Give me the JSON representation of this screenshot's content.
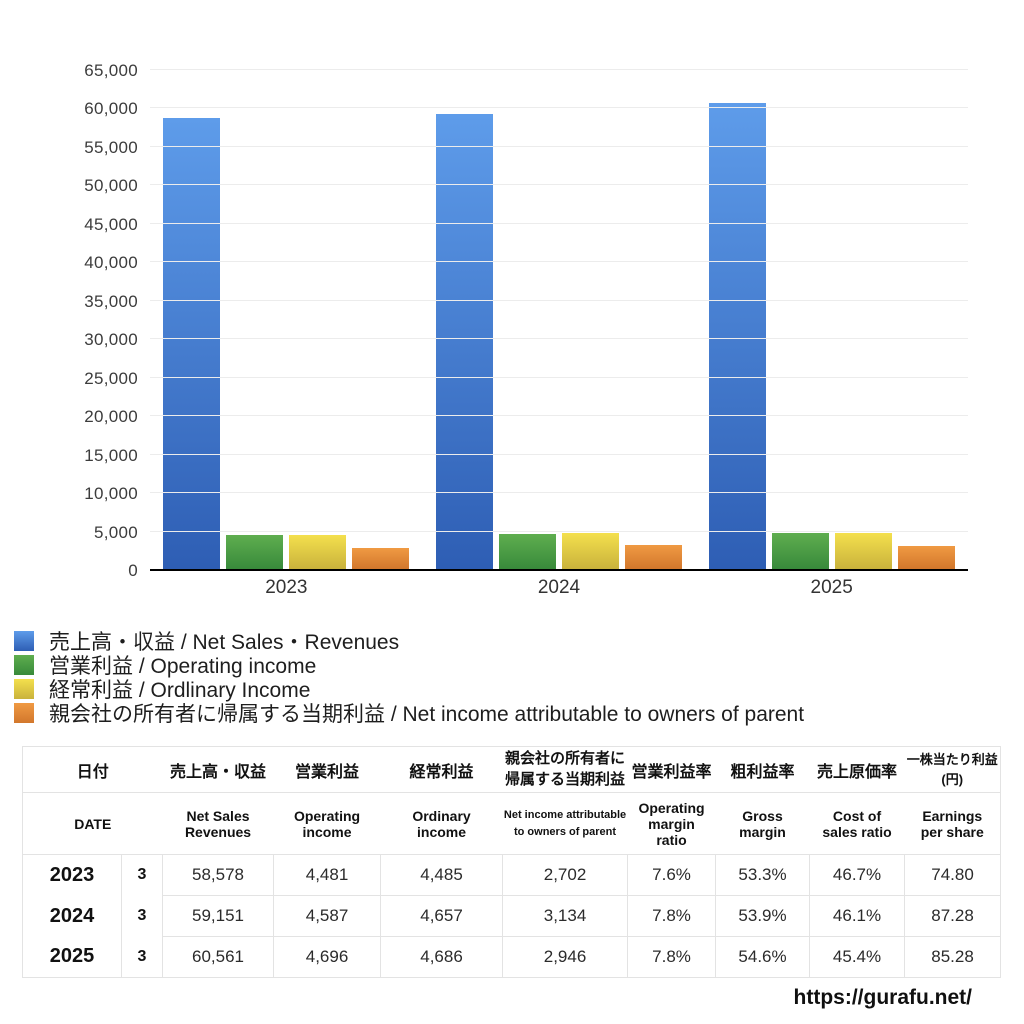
{
  "chart_data": {
    "type": "bar",
    "title": "",
    "categories": [
      "2023",
      "2024",
      "2025"
    ],
    "series": [
      {
        "key": "net-sales-revenues",
        "name": "売上高・収益 / Net Sales・Revenues",
        "values": [
          58578,
          59151,
          60561
        ],
        "color_top": "#5e9cea",
        "color_bottom": "#2e5eb4"
      },
      {
        "key": "operating-income",
        "name": "営業利益 / Operating income",
        "values": [
          4481,
          4587,
          4696
        ],
        "color_top": "#5fae4f",
        "color_bottom": "#388a3b"
      },
      {
        "key": "ordinary-income",
        "name": "経常利益 / Ordlinary Income",
        "values": [
          4485,
          4657,
          4686
        ],
        "color_top": "#f4e04d",
        "color_bottom": "#c9b23c"
      },
      {
        "key": "net-income-parent",
        "name": "親会社の所有者に帰属する当期利益 / Net income attributable to owners of parent",
        "values": [
          2702,
          3134,
          2946
        ],
        "color_top": "#f09a43",
        "color_bottom": "#d2772c"
      }
    ],
    "xlabel": "",
    "ylabel": "",
    "ylim": [
      0,
      65000
    ],
    "ytick_step": 5000,
    "grid": true,
    "gridline_color": "#ececec",
    "axis_color": "#000000",
    "legend_position": "bottom-left"
  },
  "table": {
    "header_jp": [
      "日付",
      "売上高・収益",
      "営業利益",
      "経常利益",
      "親会社の所有者に\n帰属する当期利益",
      "営業利益率",
      "粗利益率",
      "売上原価率",
      "一株当たり利益\n(円)"
    ],
    "header_en": [
      "DATE",
      "Net Sales\nRevenues",
      "Operating\nincome",
      "Ordinary\nincome",
      "Net income attributable\nto owners of parent",
      "Operating\nmargin\nratio",
      "Gross\nmargin",
      "Cost of\nsales ratio",
      "Earnings\nper share"
    ],
    "rows": [
      {
        "year": "2023",
        "month": "3",
        "values": [
          "58,578",
          "4,481",
          "4,485",
          "2,702",
          "7.6%",
          "53.3%",
          "46.7%",
          "74.80"
        ]
      },
      {
        "year": "2024",
        "month": "3",
        "values": [
          "59,151",
          "4,587",
          "4,657",
          "3,134",
          "7.8%",
          "53.9%",
          "46.1%",
          "87.28"
        ]
      },
      {
        "year": "2025",
        "month": "3",
        "values": [
          "60,561",
          "4,696",
          "4,686",
          "2,946",
          "7.8%",
          "54.6%",
          "45.4%",
          "85.28"
        ]
      }
    ]
  },
  "footer": {
    "url_label": "https://gurafu.net/"
  }
}
